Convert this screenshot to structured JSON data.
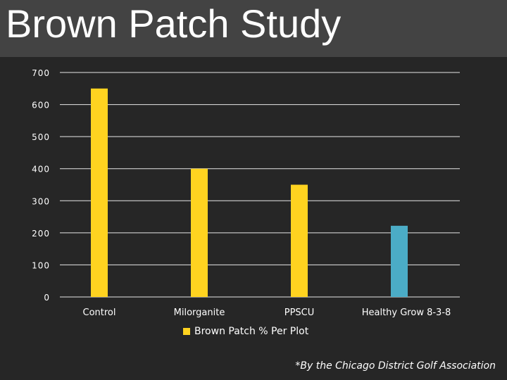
{
  "slide": {
    "title": "Brown Patch Study",
    "footnote": "*By the Chicago District Golf Association"
  },
  "colors": {
    "background": "#262626",
    "title_band": "#434343",
    "bar_primary": "#FFD320",
    "bar_highlight": "#4BACC6",
    "grid": "#E6E6E6",
    "text": "#FFFFFF"
  },
  "chart_data": {
    "type": "bar",
    "title": "",
    "xlabel": "",
    "ylabel": "",
    "categories": [
      "Control",
      "Milorganite",
      "PPSCU",
      "Healthy Grow 8-3-8"
    ],
    "series": [
      {
        "name": "Brown Patch % Per Plot",
        "values": [
          650,
          400,
          350,
          222
        ]
      }
    ],
    "highlight_index": 3,
    "ylim": [
      0,
      700
    ],
    "yticks": [
      0,
      100,
      200,
      300,
      400,
      500,
      600,
      700
    ],
    "grid": true,
    "legend": "bottom"
  }
}
